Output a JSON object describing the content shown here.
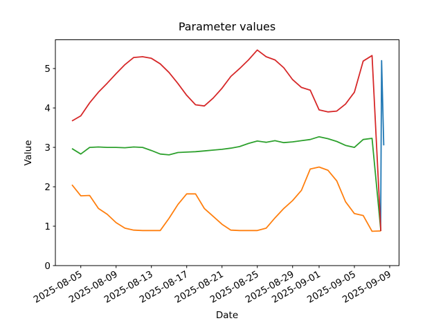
{
  "chart_data": {
    "type": "line",
    "title": "Parameter values",
    "xlabel": "Date",
    "ylabel": "Value",
    "grid": false,
    "legend": "none",
    "x_axis": {
      "unit": "days since 2025-08-04",
      "xlim_days": [
        -1.88,
        37.06
      ],
      "ticks": [
        {
          "label": "2025-08-05",
          "day": 1
        },
        {
          "label": "2025-08-09",
          "day": 5
        },
        {
          "label": "2025-08-13",
          "day": 9
        },
        {
          "label": "2025-08-17",
          "day": 13
        },
        {
          "label": "2025-08-21",
          "day": 17
        },
        {
          "label": "2025-08-25",
          "day": 21
        },
        {
          "label": "2025-08-29",
          "day": 25
        },
        {
          "label": "2025-09-01",
          "day": 28
        },
        {
          "label": "2025-09-05",
          "day": 32
        },
        {
          "label": "2025-09-09",
          "day": 36
        }
      ],
      "tick_rotation_deg": 30
    },
    "y_axis": {
      "ticks": [
        0,
        1,
        2,
        3,
        4,
        5
      ],
      "lim": [
        0,
        5.73
      ]
    },
    "dates_start": "2025-08-04",
    "dates_end": "2025-09-08",
    "x_days_shared": [
      0,
      1,
      2,
      3,
      4,
      5,
      6,
      7,
      8,
      9,
      10,
      11,
      12,
      13,
      14,
      15,
      16,
      17,
      18,
      19,
      20,
      21,
      22,
      23,
      24,
      25,
      26,
      27,
      28,
      29,
      30,
      31,
      32,
      33,
      34,
      35
    ],
    "series": [
      {
        "name": "blue-series",
        "color": "#1f77b4",
        "x_days": [
          34.97,
          35.08,
          35.33
        ],
        "values": [
          0.88,
          5.2,
          3.05
        ]
      },
      {
        "name": "orange-series",
        "color": "#ff7f0e",
        "values": [
          2.05,
          1.77,
          1.78,
          1.45,
          1.3,
          1.09,
          0.95,
          0.9,
          0.89,
          0.89,
          0.89,
          1.2,
          1.55,
          1.82,
          1.82,
          1.45,
          1.25,
          1.05,
          0.9,
          0.89,
          0.89,
          0.89,
          0.95,
          1.21,
          1.45,
          1.65,
          1.91,
          2.45,
          2.5,
          2.42,
          2.15,
          1.62,
          1.32,
          1.27,
          0.87,
          0.88
        ]
      },
      {
        "name": "green-series",
        "color": "#2ca02c",
        "values": [
          2.97,
          2.83,
          3.0,
          3.01,
          3.0,
          3.0,
          2.99,
          3.01,
          3.0,
          2.92,
          2.83,
          2.81,
          2.87,
          2.88,
          2.89,
          2.91,
          2.93,
          2.95,
          2.98,
          3.02,
          3.1,
          3.16,
          3.13,
          3.17,
          3.12,
          3.14,
          3.17,
          3.2,
          3.27,
          3.22,
          3.15,
          3.05,
          3.0,
          3.2,
          3.23,
          0.88
        ]
      },
      {
        "name": "red-series",
        "color": "#d62728",
        "values": [
          3.67,
          3.8,
          4.13,
          4.4,
          4.63,
          4.87,
          5.1,
          5.28,
          5.3,
          5.26,
          5.12,
          4.9,
          4.62,
          4.32,
          4.08,
          4.05,
          4.25,
          4.5,
          4.8,
          5.0,
          5.22,
          5.47,
          5.3,
          5.22,
          5.02,
          4.72,
          4.52,
          4.45,
          3.95,
          3.9,
          3.92,
          4.1,
          4.4,
          5.19,
          5.33,
          0.88
        ]
      }
    ]
  }
}
